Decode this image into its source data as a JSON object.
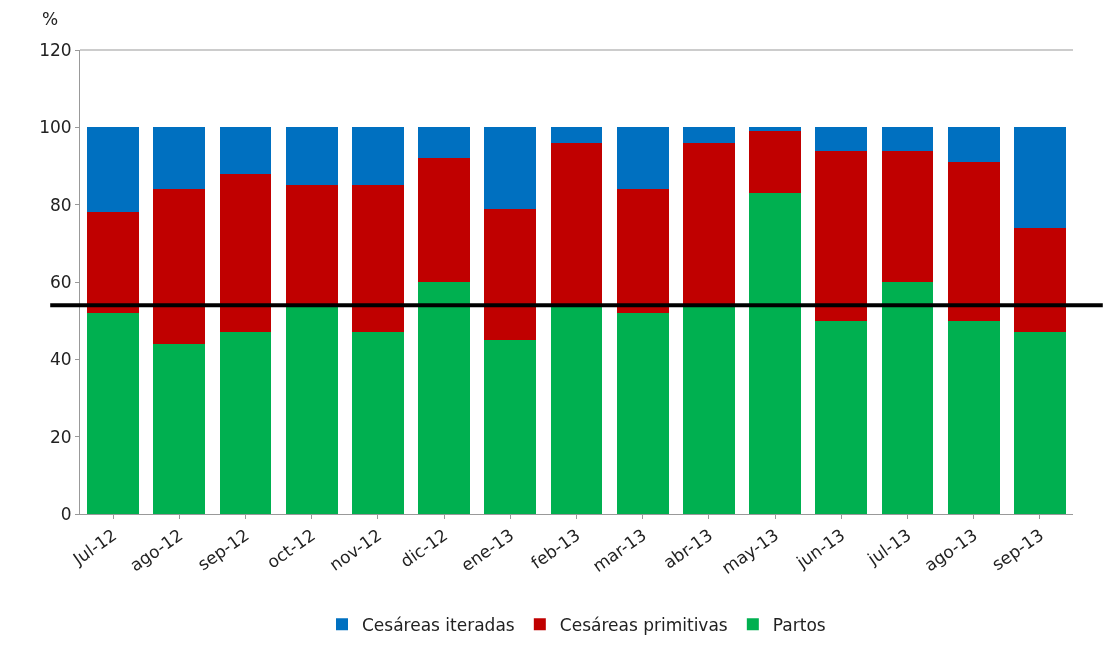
{
  "chart_data": {
    "type": "bar",
    "stacked": true,
    "ylabel": "%",
    "categories": [
      "Jul-12",
      "ago-12",
      "sep-12",
      "oct-12",
      "nov-12",
      "dic-12",
      "ene-13",
      "feb-13",
      "mar-13",
      "abr-13",
      "may-13",
      "jun-13",
      "jul-13",
      "ago-13",
      "sep-13"
    ],
    "series": [
      {
        "name": "Partos",
        "color": "#00b050",
        "values": [
          52,
          44,
          47,
          54,
          47,
          60,
          45,
          54,
          52,
          54,
          83,
          50,
          60,
          50,
          47
        ]
      },
      {
        "name": "Cesáreas primitivas",
        "color": "#c00000",
        "values": [
          26,
          40,
          41,
          31,
          38,
          32,
          34,
          42,
          32,
          42,
          16,
          44,
          34,
          41,
          27
        ]
      },
      {
        "name": "Cesáreas iteradas",
        "color": "#0070c0",
        "values": [
          22,
          16,
          12,
          15,
          15,
          8,
          21,
          4,
          16,
          4,
          1,
          6,
          6,
          9,
          26
        ]
      }
    ],
    "ylim": [
      0,
      120
    ],
    "yticks": [
      0,
      20,
      40,
      60,
      80,
      100,
      120
    ],
    "grid": false,
    "legend": "bottom",
    "ref_lines": [
      {
        "axis": "y",
        "value": 54,
        "color": "#000000"
      }
    ]
  }
}
